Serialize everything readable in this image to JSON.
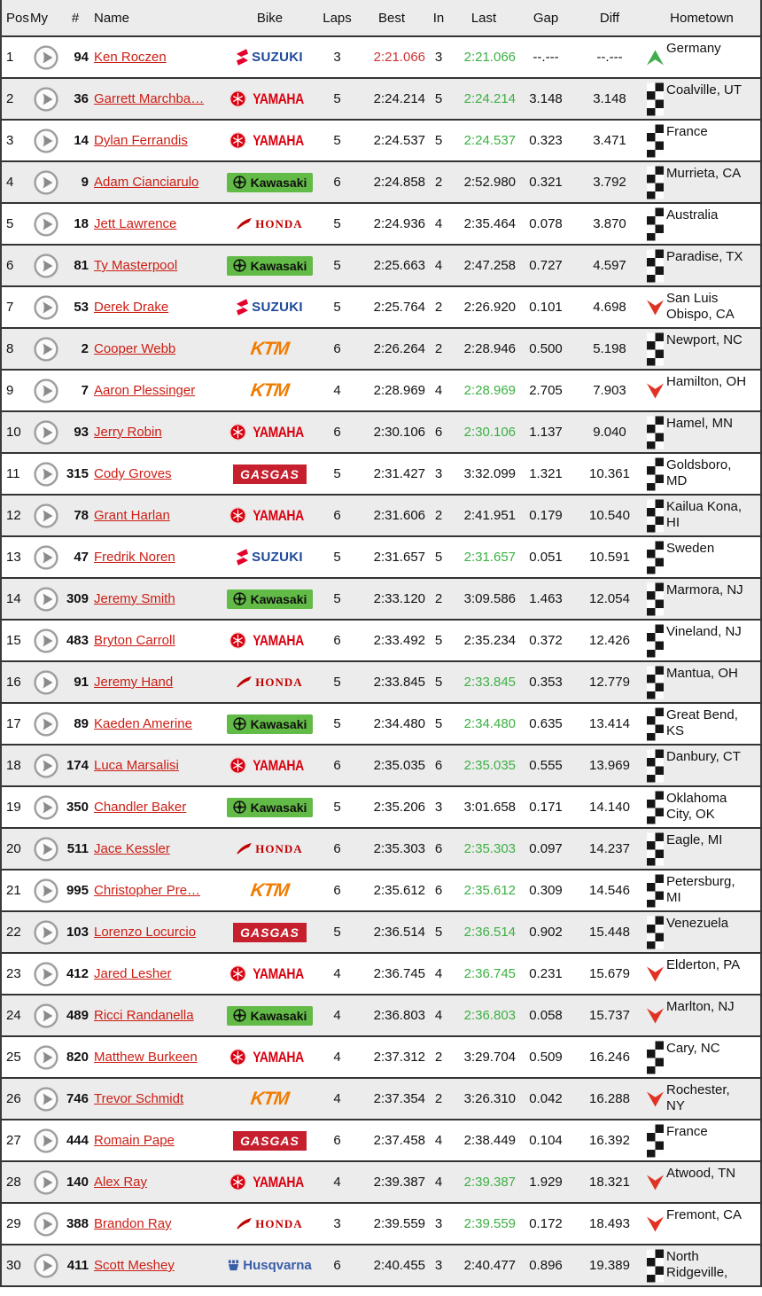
{
  "header": {
    "pos": "Pos",
    "my": "My",
    "num": "#",
    "name": "Name",
    "bike": "Bike",
    "laps": "Laps",
    "best": "Best",
    "in": "In",
    "last": "Last",
    "gap": "Gap",
    "diff": "Diff",
    "hometown": "Hometown"
  },
  "colors": {
    "fastest_lap_red": "#cc3333",
    "personal_best_green": "#3cb043",
    "rider_link_red": "#cc1e14",
    "row_alt_gray": "#ececec",
    "row_border": "#333333",
    "up_arrow_green": "#3fae4c",
    "down_arrow_red": "#e03323",
    "kawasaki_green": "#62bb46",
    "gasgas_red": "#c6202e",
    "ktm_orange": "#f07c00",
    "suzuki_blue": "#1d4899",
    "suzuki_red": "#e4002b",
    "yamaha_red": "#d8000f",
    "honda_red": "#c00000",
    "husqvarna_blue": "#3a5da8"
  },
  "icons": {
    "play": "play-button-icon",
    "flag": "finished-flag-icon",
    "up": "position-up-icon",
    "down": "position-down-icon"
  },
  "rows": [
    {
      "pos": "1",
      "num": "94",
      "name": "Ken Roczen",
      "bike": "suzuki",
      "laps": "3",
      "best": "2:21.066",
      "in": "3",
      "last": "2:21.066",
      "gap": "--.---",
      "diff": "--.---",
      "status": "up",
      "hometown": "Germany",
      "best_red": true,
      "last_green": true
    },
    {
      "pos": "2",
      "num": "36",
      "name": "Garrett Marchba…",
      "bike": "yamaha",
      "laps": "5",
      "best": "2:24.214",
      "in": "5",
      "last": "2:24.214",
      "gap": "3.148",
      "diff": "3.148",
      "status": "flag",
      "hometown": "Coalville, UT",
      "best_red": false,
      "last_green": true
    },
    {
      "pos": "3",
      "num": "14",
      "name": "Dylan Ferrandis",
      "bike": "yamaha",
      "laps": "5",
      "best": "2:24.537",
      "in": "5",
      "last": "2:24.537",
      "gap": "0.323",
      "diff": "3.471",
      "status": "flag",
      "hometown": "France",
      "best_red": false,
      "last_green": true
    },
    {
      "pos": "4",
      "num": "9",
      "name": "Adam Cianciarulo",
      "bike": "kawasaki",
      "laps": "6",
      "best": "2:24.858",
      "in": "2",
      "last": "2:52.980",
      "gap": "0.321",
      "diff": "3.792",
      "status": "flag",
      "hometown": "Murrieta, CA",
      "best_red": false,
      "last_green": false
    },
    {
      "pos": "5",
      "num": "18",
      "name": "Jett Lawrence",
      "bike": "honda",
      "laps": "5",
      "best": "2:24.936",
      "in": "4",
      "last": "2:35.464",
      "gap": "0.078",
      "diff": "3.870",
      "status": "flag",
      "hometown": "Australia",
      "best_red": false,
      "last_green": false
    },
    {
      "pos": "6",
      "num": "81",
      "name": "Ty Masterpool",
      "bike": "kawasaki",
      "laps": "5",
      "best": "2:25.663",
      "in": "4",
      "last": "2:47.258",
      "gap": "0.727",
      "diff": "4.597",
      "status": "flag",
      "hometown": "Paradise, TX",
      "best_red": false,
      "last_green": false
    },
    {
      "pos": "7",
      "num": "53",
      "name": "Derek Drake",
      "bike": "suzuki",
      "laps": "5",
      "best": "2:25.764",
      "in": "2",
      "last": "2:26.920",
      "gap": "0.101",
      "diff": "4.698",
      "status": "down",
      "hometown": "San Luis Obispo, CA",
      "best_red": false,
      "last_green": false
    },
    {
      "pos": "8",
      "num": "2",
      "name": "Cooper Webb",
      "bike": "ktm",
      "laps": "6",
      "best": "2:26.264",
      "in": "2",
      "last": "2:28.946",
      "gap": "0.500",
      "diff": "5.198",
      "status": "flag",
      "hometown": "Newport, NC",
      "best_red": false,
      "last_green": false
    },
    {
      "pos": "9",
      "num": "7",
      "name": "Aaron Plessinger",
      "bike": "ktm",
      "laps": "4",
      "best": "2:28.969",
      "in": "4",
      "last": "2:28.969",
      "gap": "2.705",
      "diff": "7.903",
      "status": "down",
      "hometown": "Hamilton, OH",
      "best_red": false,
      "last_green": true
    },
    {
      "pos": "10",
      "num": "93",
      "name": "Jerry Robin",
      "bike": "yamaha",
      "laps": "6",
      "best": "2:30.106",
      "in": "6",
      "last": "2:30.106",
      "gap": "1.137",
      "diff": "9.040",
      "status": "flag",
      "hometown": "Hamel, MN",
      "best_red": false,
      "last_green": true
    },
    {
      "pos": "11",
      "num": "315",
      "name": "Cody Groves",
      "bike": "gasgas",
      "laps": "5",
      "best": "2:31.427",
      "in": "3",
      "last": "3:32.099",
      "gap": "1.321",
      "diff": "10.361",
      "status": "flag",
      "hometown": "Goldsboro, MD",
      "best_red": false,
      "last_green": false
    },
    {
      "pos": "12",
      "num": "78",
      "name": "Grant Harlan",
      "bike": "yamaha",
      "laps": "6",
      "best": "2:31.606",
      "in": "2",
      "last": "2:41.951",
      "gap": "0.179",
      "diff": "10.540",
      "status": "flag",
      "hometown": "Kailua Kona, HI",
      "best_red": false,
      "last_green": false
    },
    {
      "pos": "13",
      "num": "47",
      "name": "Fredrik Noren",
      "bike": "suzuki",
      "laps": "5",
      "best": "2:31.657",
      "in": "5",
      "last": "2:31.657",
      "gap": "0.051",
      "diff": "10.591",
      "status": "flag",
      "hometown": "Sweden",
      "best_red": false,
      "last_green": true
    },
    {
      "pos": "14",
      "num": "309",
      "name": "Jeremy Smith",
      "bike": "kawasaki",
      "laps": "5",
      "best": "2:33.120",
      "in": "2",
      "last": "3:09.586",
      "gap": "1.463",
      "diff": "12.054",
      "status": "flag",
      "hometown": "Marmora, NJ",
      "best_red": false,
      "last_green": false
    },
    {
      "pos": "15",
      "num": "483",
      "name": "Bryton Carroll",
      "bike": "yamaha",
      "laps": "6",
      "best": "2:33.492",
      "in": "5",
      "last": "2:35.234",
      "gap": "0.372",
      "diff": "12.426",
      "status": "flag",
      "hometown": "Vineland, NJ",
      "best_red": false,
      "last_green": false
    },
    {
      "pos": "16",
      "num": "91",
      "name": "Jeremy Hand",
      "bike": "honda",
      "laps": "5",
      "best": "2:33.845",
      "in": "5",
      "last": "2:33.845",
      "gap": "0.353",
      "diff": "12.779",
      "status": "flag",
      "hometown": "Mantua, OH",
      "best_red": false,
      "last_green": true
    },
    {
      "pos": "17",
      "num": "89",
      "name": "Kaeden Amerine",
      "bike": "kawasaki",
      "laps": "5",
      "best": "2:34.480",
      "in": "5",
      "last": "2:34.480",
      "gap": "0.635",
      "diff": "13.414",
      "status": "flag",
      "hometown": "Great Bend, KS",
      "best_red": false,
      "last_green": true
    },
    {
      "pos": "18",
      "num": "174",
      "name": "Luca Marsalisi",
      "bike": "yamaha",
      "laps": "6",
      "best": "2:35.035",
      "in": "6",
      "last": "2:35.035",
      "gap": "0.555",
      "diff": "13.969",
      "status": "flag",
      "hometown": "Danbury, CT",
      "best_red": false,
      "last_green": true
    },
    {
      "pos": "19",
      "num": "350",
      "name": "Chandler Baker",
      "bike": "kawasaki",
      "laps": "5",
      "best": "2:35.206",
      "in": "3",
      "last": "3:01.658",
      "gap": "0.171",
      "diff": "14.140",
      "status": "flag",
      "hometown": "Oklahoma City, OK",
      "best_red": false,
      "last_green": false
    },
    {
      "pos": "20",
      "num": "511",
      "name": "Jace Kessler",
      "bike": "honda",
      "laps": "6",
      "best": "2:35.303",
      "in": "6",
      "last": "2:35.303",
      "gap": "0.097",
      "diff": "14.237",
      "status": "flag",
      "hometown": "Eagle, MI",
      "best_red": false,
      "last_green": true
    },
    {
      "pos": "21",
      "num": "995",
      "name": "Christopher Pre…",
      "bike": "ktm",
      "laps": "6",
      "best": "2:35.612",
      "in": "6",
      "last": "2:35.612",
      "gap": "0.309",
      "diff": "14.546",
      "status": "flag",
      "hometown": "Petersburg, MI",
      "best_red": false,
      "last_green": true
    },
    {
      "pos": "22",
      "num": "103",
      "name": "Lorenzo Locurcio",
      "bike": "gasgas",
      "laps": "5",
      "best": "2:36.514",
      "in": "5",
      "last": "2:36.514",
      "gap": "0.902",
      "diff": "15.448",
      "status": "flag",
      "hometown": "Venezuela",
      "best_red": false,
      "last_green": true
    },
    {
      "pos": "23",
      "num": "412",
      "name": "Jared Lesher",
      "bike": "yamaha",
      "laps": "4",
      "best": "2:36.745",
      "in": "4",
      "last": "2:36.745",
      "gap": "0.231",
      "diff": "15.679",
      "status": "down",
      "hometown": "Elderton, PA",
      "best_red": false,
      "last_green": true
    },
    {
      "pos": "24",
      "num": "489",
      "name": "Ricci Randanella",
      "bike": "kawasaki",
      "laps": "4",
      "best": "2:36.803",
      "in": "4",
      "last": "2:36.803",
      "gap": "0.058",
      "diff": "15.737",
      "status": "down",
      "hometown": "Marlton, NJ",
      "best_red": false,
      "last_green": true
    },
    {
      "pos": "25",
      "num": "820",
      "name": "Matthew Burkeen",
      "bike": "yamaha",
      "laps": "4",
      "best": "2:37.312",
      "in": "2",
      "last": "3:29.704",
      "gap": "0.509",
      "diff": "16.246",
      "status": "flag",
      "hometown": "Cary, NC",
      "best_red": false,
      "last_green": false
    },
    {
      "pos": "26",
      "num": "746",
      "name": "Trevor Schmidt",
      "bike": "ktm",
      "laps": "4",
      "best": "2:37.354",
      "in": "2",
      "last": "3:26.310",
      "gap": "0.042",
      "diff": "16.288",
      "status": "down",
      "hometown": "Rochester, NY",
      "best_red": false,
      "last_green": false
    },
    {
      "pos": "27",
      "num": "444",
      "name": "Romain Pape",
      "bike": "gasgas",
      "laps": "6",
      "best": "2:37.458",
      "in": "4",
      "last": "2:38.449",
      "gap": "0.104",
      "diff": "16.392",
      "status": "flag",
      "hometown": "France",
      "best_red": false,
      "last_green": false
    },
    {
      "pos": "28",
      "num": "140",
      "name": "Alex Ray",
      "bike": "yamaha",
      "laps": "4",
      "best": "2:39.387",
      "in": "4",
      "last": "2:39.387",
      "gap": "1.929",
      "diff": "18.321",
      "status": "down",
      "hometown": "Atwood, TN",
      "best_red": false,
      "last_green": true
    },
    {
      "pos": "29",
      "num": "388",
      "name": "Brandon Ray",
      "bike": "honda",
      "laps": "3",
      "best": "2:39.559",
      "in": "3",
      "last": "2:39.559",
      "gap": "0.172",
      "diff": "18.493",
      "status": "down",
      "hometown": "Fremont, CA",
      "best_red": false,
      "last_green": true
    },
    {
      "pos": "30",
      "num": "411",
      "name": "Scott Meshey",
      "bike": "husqvarna",
      "laps": "6",
      "best": "2:40.455",
      "in": "3",
      "last": "2:40.477",
      "gap": "0.896",
      "diff": "19.389",
      "status": "flag",
      "hometown": "North Ridgeville,",
      "best_red": false,
      "last_green": false
    }
  ]
}
